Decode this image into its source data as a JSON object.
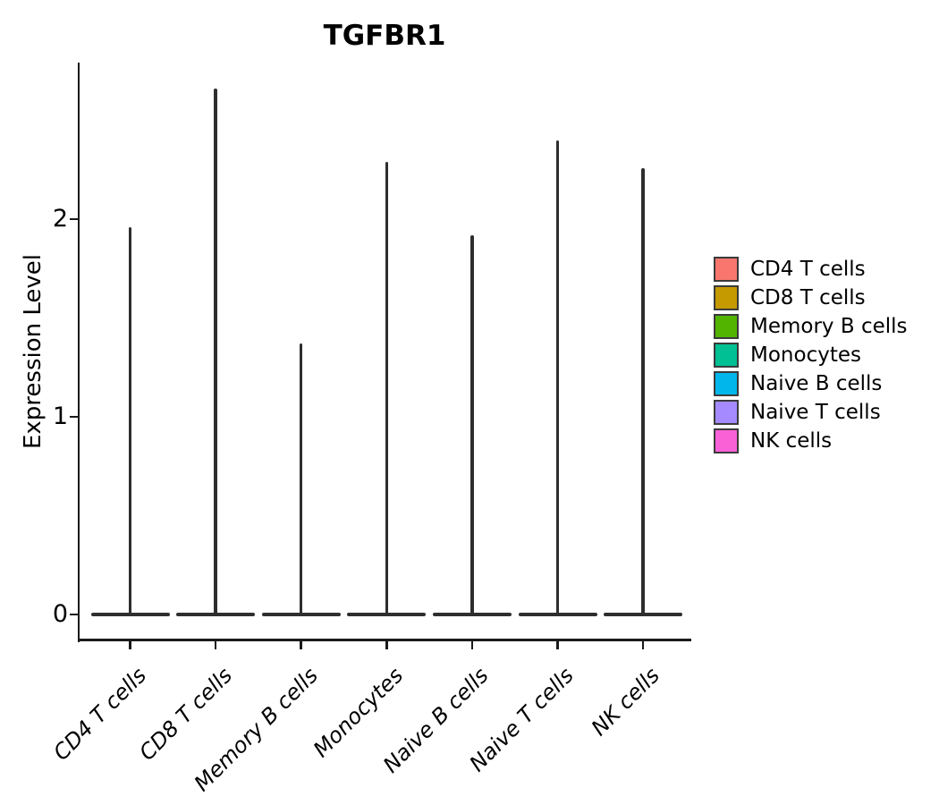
{
  "title": "TGFBR1",
  "y_axis": {
    "label": "Expression Level",
    "tick_labels": [
      "0",
      "1",
      "2"
    ],
    "tick_values": [
      0,
      1,
      2
    ]
  },
  "x_axis": {
    "categories": [
      "CD4 T cells",
      "CD8 T cells",
      "Memory B cells",
      "Monocytes",
      "Naive B cells",
      "Naive T cells",
      "NK cells"
    ]
  },
  "legend": {
    "items": [
      {
        "label": "CD4 T cells",
        "color": "#F8766D"
      },
      {
        "label": "CD8 T cells",
        "color": "#C49A00"
      },
      {
        "label": "Memory B cells",
        "color": "#53B400"
      },
      {
        "label": "Monocytes",
        "color": "#00C094"
      },
      {
        "label": "Naive B cells",
        "color": "#00B6EB"
      },
      {
        "label": "Naive T cells",
        "color": "#A58AFF"
      },
      {
        "label": "NK cells",
        "color": "#FB61D7"
      }
    ]
  },
  "chart_data": {
    "type": "violin",
    "title": "TGFBR1",
    "ylabel": "Expression Level",
    "categories": [
      "CD4 T cells",
      "CD8 T cells",
      "Memory B cells",
      "Monocytes",
      "Naive B cells",
      "Naive T cells",
      "NK cells"
    ],
    "series": [
      {
        "name": "max_expression_level",
        "values": [
          1.96,
          2.66,
          1.37,
          2.29,
          1.92,
          2.4,
          2.26
        ]
      },
      {
        "name": "density_mode",
        "values": [
          0,
          0,
          0,
          0,
          0,
          0,
          0
        ]
      }
    ],
    "colors": [
      "#F8766D",
      "#C49A00",
      "#53B400",
      "#00C094",
      "#00B6EB",
      "#A58AFF",
      "#FB61D7"
    ],
    "ylim": [
      0,
      2.8
    ],
    "yticks": [
      0,
      1,
      2
    ],
    "grid": false,
    "legend_position": "right",
    "shape_note": "Each violin collapses to a thin near-black vertical spike from 0 up to its max value, with a wide flat base at 0 (expression mass concentrated at zero)."
  },
  "colors": {
    "background": "#FFFFFF",
    "violin_outline": "#2E2E2E",
    "axis": "#1A1A1A",
    "text": "#000000",
    "legend_swatch_border": "#3A3A3A"
  }
}
